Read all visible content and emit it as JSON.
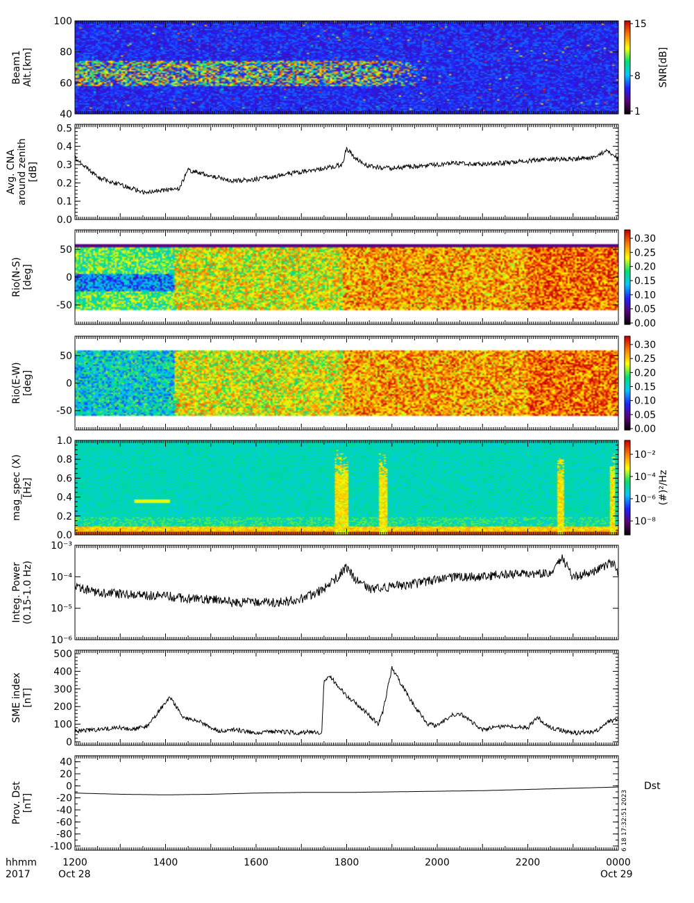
{
  "x_axis": {
    "ticks": [
      "1200",
      "1400",
      "1600",
      "1800",
      "2000",
      "2200",
      "0000"
    ],
    "row1_label": "hhmm",
    "row2_label": "2017",
    "start_date": "Oct 28",
    "end_date": "Oct 29"
  },
  "stamp": "6 18 17:32:51 2023",
  "colors": {
    "spectral_scale": [
      "#000000",
      "#5a0078",
      "#2020ff",
      "#00c8ff",
      "#00e070",
      "#ffff00",
      "#ff8000",
      "#cc0000"
    ]
  },
  "chart_data": [
    {
      "id": "beam",
      "type": "heatmap",
      "ylabel": [
        "Beam1",
        "Alt.[km]"
      ],
      "yticks": [
        "100",
        "80",
        "60",
        "40"
      ],
      "ylim": [
        40,
        100
      ],
      "colorbar": {
        "label": "SNR[dB]",
        "ticks": [
          "15",
          "8",
          "1"
        ],
        "range": [
          1,
          15
        ]
      },
      "bright_bands_km": [
        [
          58,
          74
        ]
      ]
    },
    {
      "id": "cna",
      "type": "line",
      "ylabel": [
        "Avg. CNA",
        "around zenith",
        "[dB]"
      ],
      "yticks": [
        "0.5",
        "0.4",
        "0.3",
        "0.2",
        "0.1",
        "0.0"
      ],
      "ylim": [
        0,
        0.52
      ],
      "series": [
        {
          "x_hours": [
            12,
            12.5,
            13,
            13.5,
            14,
            14.3,
            14.5,
            15,
            15.5,
            16,
            16.5,
            17,
            17.5,
            17.9,
            18,
            18.2,
            18.5,
            19,
            19.5,
            20,
            20.5,
            21,
            21.5,
            22,
            22.5,
            23,
            23.5,
            23.75,
            24
          ],
          "values": [
            0.34,
            0.23,
            0.19,
            0.15,
            0.16,
            0.17,
            0.27,
            0.24,
            0.21,
            0.22,
            0.24,
            0.26,
            0.28,
            0.3,
            0.39,
            0.33,
            0.29,
            0.28,
            0.29,
            0.3,
            0.31,
            0.3,
            0.31,
            0.32,
            0.33,
            0.33,
            0.34,
            0.38,
            0.33
          ]
        }
      ]
    },
    {
      "id": "rio_ns",
      "type": "heatmap",
      "ylabel": [
        "Rio(N-S)",
        "[deg]"
      ],
      "yticks": [
        "50",
        "0",
        "-50"
      ],
      "ylim": [
        -85,
        85
      ],
      "colorbar": {
        "label": "",
        "ticks": [
          "0.30",
          "0.25",
          "0.20",
          "0.15",
          "0.10",
          "0.05",
          "0.00"
        ],
        "range": [
          0,
          0.33
        ]
      }
    },
    {
      "id": "rio_ew",
      "type": "heatmap",
      "ylabel": [
        "Rio(E-W)",
        "[deg]"
      ],
      "yticks": [
        "50",
        "0",
        "-50"
      ],
      "ylim": [
        -85,
        85
      ],
      "colorbar": {
        "label": "",
        "ticks": [
          "0.30",
          "0.25",
          "0.20",
          "0.15",
          "0.10",
          "0.05",
          "0.00"
        ],
        "range": [
          0,
          0.33
        ]
      }
    },
    {
      "id": "magspec",
      "type": "heatmap",
      "ylabel": [
        "mag_spec (X)",
        "[Hz]"
      ],
      "yticks": [
        "1.0",
        "0.8",
        "0.6",
        "0.4",
        "0.2",
        "0.0"
      ],
      "ylim": [
        0,
        1.0
      ],
      "colorbar": {
        "label": "(#)²/Hz",
        "ticks": [
          "10⁻²",
          "10⁻⁴",
          "10⁻⁶",
          "10⁻⁸"
        ]
      }
    },
    {
      "id": "power",
      "type": "line",
      "ylabel": [
        "Integ. Power",
        "(0.15-1.0 Hz)"
      ],
      "yticks": [
        "10⁻³",
        "10⁻⁴",
        "10⁻⁵",
        "10⁻⁶"
      ],
      "ylim": [
        -6,
        -3
      ],
      "log_scale": true,
      "series": [
        {
          "x_hours": [
            12,
            12.5,
            13,
            13.5,
            14,
            14.5,
            15,
            15.5,
            16,
            16.5,
            17,
            17.5,
            17.8,
            18,
            18.2,
            18.5,
            19,
            19.5,
            20,
            20.5,
            21,
            21.5,
            22,
            22.5,
            22.75,
            23,
            23.5,
            23.9,
            24
          ],
          "values": [
            5e-05,
            3e-05,
            3e-05,
            2.5e-05,
            2.5e-05,
            2e-05,
            2e-05,
            1.5e-05,
            1.5e-05,
            1.5e-05,
            2e-05,
            4e-05,
            0.0001,
            0.0002,
            8e-05,
            4e-05,
            5e-05,
            6e-05,
            8e-05,
            0.0001,
            0.0001,
            0.00012,
            0.00012,
            0.00013,
            0.0004,
            0.0001,
            0.00015,
            0.0003,
            0.0001
          ]
        }
      ]
    },
    {
      "id": "sme",
      "type": "line",
      "ylabel": [
        "SME index",
        "[nT]"
      ],
      "yticks": [
        "500",
        "400",
        "300",
        "200",
        "100",
        "0"
      ],
      "ylim": [
        -20,
        520
      ],
      "series": [
        {
          "x_hours": [
            12,
            12.5,
            13,
            13.3,
            13.6,
            14,
            14.1,
            14.4,
            14.8,
            15,
            15.2,
            15.5,
            16,
            16.5,
            16.9,
            17.2,
            17.45,
            17.5,
            17.6,
            18,
            18.2,
            18.5,
            18.7,
            18.8,
            19,
            19.2,
            19.5,
            19.8,
            20,
            20.3,
            20.5,
            21,
            21.5,
            22,
            22.2,
            22.5,
            23,
            23.5,
            23.75,
            24
          ],
          "values": [
            60,
            70,
            80,
            70,
            90,
            220,
            250,
            140,
            110,
            80,
            60,
            70,
            50,
            60,
            50,
            60,
            50,
            340,
            380,
            260,
            220,
            150,
            100,
            170,
            420,
            330,
            200,
            100,
            90,
            150,
            160,
            70,
            90,
            80,
            140,
            80,
            50,
            60,
            110,
            130
          ]
        }
      ]
    },
    {
      "id": "dst",
      "type": "line",
      "ylabel": [
        "Prov. Dst",
        "[nT]"
      ],
      "yticks": [
        "40",
        "20",
        "0",
        "-20",
        "-40",
        "-60",
        "-80",
        "-100"
      ],
      "ylim": [
        -107,
        50
      ],
      "series": [
        {
          "name": "Dst",
          "x_hours": [
            12,
            13,
            14,
            15,
            16,
            17,
            18,
            19,
            20,
            21,
            22,
            23,
            24
          ],
          "values": [
            -12,
            -14,
            -15,
            -14,
            -12,
            -11,
            -11,
            -10,
            -9,
            -8,
            -6,
            -4,
            -2
          ]
        }
      ]
    }
  ]
}
